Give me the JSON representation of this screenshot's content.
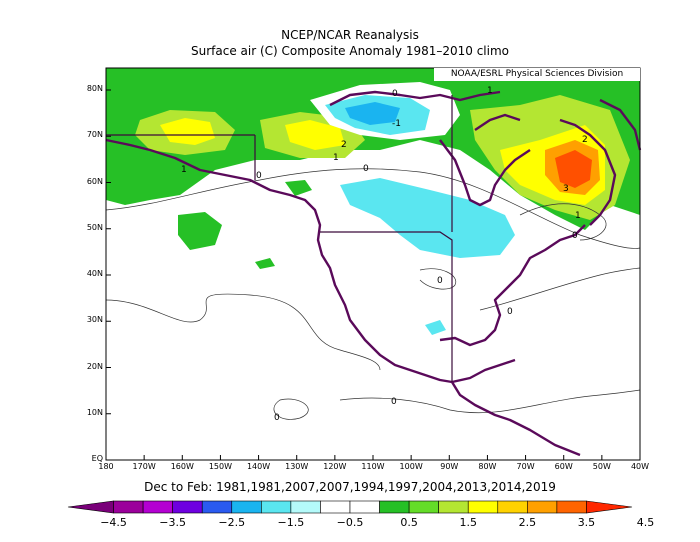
{
  "title_line1": "NCEP/NCAR Reanalysis",
  "title_line2": "Surface air (C) Composite Anomaly 1981–2010 climo",
  "credit": "NOAA/ESRL Physical Sciences Division",
  "subtitle": "Dec to Feb: 1981,1981,2007,2007,1994,1997,2004,2013,2014,2019",
  "lat_labels": [
    "80N",
    "70N",
    "60N",
    "50N",
    "40N",
    "30N",
    "20N",
    "10N",
    "EQ"
  ],
  "lon_labels": [
    "180",
    "170W",
    "160W",
    "150W",
    "140W",
    "130W",
    "120W",
    "110W",
    "100W",
    "90W",
    "80W",
    "70W",
    "60W",
    "50W",
    "40W"
  ],
  "contour_labels": [
    "0",
    "1",
    "1",
    "2",
    "1",
    "0",
    "2",
    "0",
    "3",
    "1",
    "0",
    "0",
    "0",
    "0",
    "0",
    "-1"
  ],
  "colorbar": {
    "labels": [
      "−4.5",
      "−3.5",
      "−2.5",
      "−1.5",
      "−0.5",
      "0.5",
      "1.5",
      "2.5",
      "3.5",
      "4.5"
    ],
    "colors": [
      "#7a007a",
      "#9b009b",
      "#b400d2",
      "#6e00e0",
      "#2a5af0",
      "#1ab4f0",
      "#5ae6f0",
      "#b4fafa",
      "#ffffff",
      "#ffffff",
      "#26c026",
      "#64dc28",
      "#b4e632",
      "#ffff00",
      "#ffd200",
      "#ffa000",
      "#ff6400",
      "#ff2800"
    ]
  },
  "colors": {
    "land_outline": "#5a0a5a",
    "warm1": "#26c026",
    "warm2": "#b4e632",
    "warm3": "#ffff00",
    "warm4": "#ffa000",
    "warm5": "#ff5000",
    "cold1": "#5ae6f0",
    "cold2": "#1ab4f0"
  }
}
